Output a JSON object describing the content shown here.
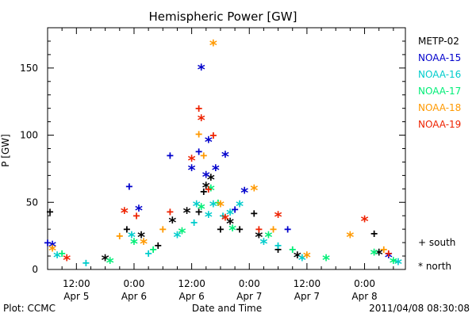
{
  "chart_data": {
    "type": "scatter",
    "title": "Hemispheric Power [GW]",
    "xlabel": "Date and Time",
    "ylabel": "P [GW]",
    "xlim": [
      "2011-04-05 06:00",
      "2011-04-08 08:30"
    ],
    "ylim": [
      0,
      180
    ],
    "yticks": [
      0,
      50,
      100,
      150
    ],
    "xticks": [
      {
        "at": "2011-04-05 12:00",
        "time": "12:00",
        "date": "Apr 5"
      },
      {
        "at": "2011-04-06 00:00",
        "time": "0:00",
        "date": "Apr 6"
      },
      {
        "at": "2011-04-06 12:00",
        "time": "12:00",
        "date": "Apr 6"
      },
      {
        "at": "2011-04-07 00:00",
        "time": "0:00",
        "date": "Apr 7"
      },
      {
        "at": "2011-04-07 12:00",
        "time": "12:00",
        "date": "Apr 7"
      },
      {
        "at": "2011-04-08 00:00",
        "time": "0:00",
        "date": "Apr 8"
      }
    ],
    "grid": false,
    "legend_position": "right",
    "symbols": [
      {
        "marker": "+",
        "label": "south"
      },
      {
        "marker": "*",
        "label": "north"
      }
    ],
    "series": [
      {
        "name": "METP-02",
        "color": "#000000",
        "points": [
          [
            "2011-04-05 06:30",
            43,
            "+"
          ],
          [
            "2011-04-05 18:00",
            8,
            "*"
          ],
          [
            "2011-04-05 22:30",
            30,
            "+"
          ],
          [
            "2011-04-06 01:30",
            25,
            "*"
          ],
          [
            "2011-04-06 05:00",
            18,
            "+"
          ],
          [
            "2011-04-06 08:00",
            36,
            "*"
          ],
          [
            "2011-04-06 11:00",
            43,
            "*"
          ],
          [
            "2011-04-06 13:30",
            43,
            "+"
          ],
          [
            "2011-04-06 14:30",
            58,
            "+"
          ],
          [
            "2011-04-06 15:00",
            62,
            "*"
          ],
          [
            "2011-04-06 16:00",
            68,
            "*"
          ],
          [
            "2011-04-06 18:00",
            30,
            "+"
          ],
          [
            "2011-04-06 20:00",
            35,
            "*"
          ],
          [
            "2011-04-06 22:00",
            30,
            "+"
          ],
          [
            "2011-04-07 01:00",
            42,
            "+"
          ],
          [
            "2011-04-07 02:00",
            25,
            "*"
          ],
          [
            "2011-04-07 06:00",
            15,
            "+"
          ],
          [
            "2011-04-07 10:00",
            10,
            "*"
          ],
          [
            "2011-04-08 02:00",
            27,
            "+"
          ],
          [
            "2011-04-08 03:00",
            12,
            "*"
          ]
        ]
      },
      {
        "name": "NOAA-15",
        "color": "#0000cc",
        "points": [
          [
            "2011-04-05 06:00",
            20,
            "+"
          ],
          [
            "2011-04-05 07:00",
            18,
            "*"
          ],
          [
            "2011-04-05 23:00",
            62,
            "+"
          ],
          [
            "2011-04-06 01:00",
            45,
            "*"
          ],
          [
            "2011-04-06 07:30",
            85,
            "+"
          ],
          [
            "2011-04-06 12:00",
            75,
            "*"
          ],
          [
            "2011-04-06 13:30",
            88,
            "+"
          ],
          [
            "2011-04-06 14:00",
            150,
            "*"
          ],
          [
            "2011-04-06 15:00",
            70,
            "*"
          ],
          [
            "2011-04-06 15:30",
            96,
            "*"
          ],
          [
            "2011-04-06 17:00",
            75,
            "*"
          ],
          [
            "2011-04-06 19:00",
            85,
            "*"
          ],
          [
            "2011-04-06 21:00",
            45,
            "+"
          ],
          [
            "2011-04-06 23:00",
            58,
            "*"
          ],
          [
            "2011-04-07 08:00",
            30,
            "+"
          ],
          [
            "2011-04-08 05:00",
            10,
            "*"
          ]
        ]
      },
      {
        "name": "NOAA-16",
        "color": "#00cccc",
        "points": [
          [
            "2011-04-05 08:00",
            10,
            "*"
          ],
          [
            "2011-04-05 14:00",
            5,
            "+"
          ],
          [
            "2011-04-05 23:30",
            25,
            "*"
          ],
          [
            "2011-04-06 03:00",
            12,
            "+"
          ],
          [
            "2011-04-06 09:00",
            25,
            "*"
          ],
          [
            "2011-04-06 12:30",
            35,
            "+"
          ],
          [
            "2011-04-06 13:00",
            48,
            "*"
          ],
          [
            "2011-04-06 15:30",
            40,
            "*"
          ],
          [
            "2011-04-06 16:30",
            48,
            "*"
          ],
          [
            "2011-04-06 18:30",
            40,
            "+"
          ],
          [
            "2011-04-06 20:00",
            42,
            "*"
          ],
          [
            "2011-04-06 22:00",
            48,
            "*"
          ],
          [
            "2011-04-07 03:00",
            20,
            "*"
          ],
          [
            "2011-04-07 06:00",
            18,
            "+"
          ],
          [
            "2011-04-07 11:00",
            8,
            "*"
          ],
          [
            "2011-04-08 07:00",
            5,
            "*"
          ]
        ]
      },
      {
        "name": "NOAA-17",
        "color": "#00ee77",
        "points": [
          [
            "2011-04-05 09:00",
            12,
            "+"
          ],
          [
            "2011-04-05 19:00",
            6,
            "*"
          ],
          [
            "2011-04-06 00:00",
            20,
            "*"
          ],
          [
            "2011-04-06 04:00",
            15,
            "+"
          ],
          [
            "2011-04-06 10:00",
            28,
            "*"
          ],
          [
            "2011-04-06 14:00",
            46,
            "*"
          ],
          [
            "2011-04-06 16:00",
            60,
            "*"
          ],
          [
            "2011-04-06 17:30",
            50,
            "+"
          ],
          [
            "2011-04-06 20:30",
            30,
            "*"
          ],
          [
            "2011-04-07 04:00",
            25,
            "*"
          ],
          [
            "2011-04-07 09:00",
            15,
            "+"
          ],
          [
            "2011-04-07 16:00",
            8,
            "*"
          ],
          [
            "2011-04-08 02:00",
            12,
            "*"
          ],
          [
            "2011-04-08 06:00",
            6,
            "*"
          ]
        ]
      },
      {
        "name": "NOAA-18",
        "color": "#ff9900",
        "points": [
          [
            "2011-04-05 07:00",
            15,
            "*"
          ],
          [
            "2011-04-05 21:00",
            25,
            "+"
          ],
          [
            "2011-04-06 02:00",
            20,
            "*"
          ],
          [
            "2011-04-06 06:00",
            30,
            "+"
          ],
          [
            "2011-04-06 13:30",
            101,
            "+"
          ],
          [
            "2011-04-06 14:30",
            85,
            "+"
          ],
          [
            "2011-04-06 16:30",
            168,
            "*"
          ],
          [
            "2011-04-06 18:00",
            48,
            "*"
          ],
          [
            "2011-04-07 01:00",
            60,
            "*"
          ],
          [
            "2011-04-07 05:00",
            30,
            "+"
          ],
          [
            "2011-04-07 12:00",
            10,
            "*"
          ],
          [
            "2011-04-07 21:00",
            25,
            "*"
          ],
          [
            "2011-04-08 04:00",
            15,
            "+"
          ]
        ]
      },
      {
        "name": "NOAA-19",
        "color": "#ee2200",
        "points": [
          [
            "2011-04-05 10:00",
            8,
            "*"
          ],
          [
            "2011-04-05 22:00",
            43,
            "*"
          ],
          [
            "2011-04-06 00:30",
            40,
            "+"
          ],
          [
            "2011-04-06 07:30",
            43,
            "+"
          ],
          [
            "2011-04-06 12:00",
            82,
            "*"
          ],
          [
            "2011-04-06 13:30",
            120,
            "+"
          ],
          [
            "2011-04-06 14:00",
            112,
            "*"
          ],
          [
            "2011-04-06 15:30",
            60,
            "+"
          ],
          [
            "2011-04-06 16:30",
            100,
            "+"
          ],
          [
            "2011-04-06 19:00",
            38,
            "*"
          ],
          [
            "2011-04-07 02:00",
            30,
            "+"
          ],
          [
            "2011-04-07 06:00",
            40,
            "*"
          ],
          [
            "2011-04-08 00:00",
            37,
            "*"
          ],
          [
            "2011-04-08 05:00",
            12,
            "+"
          ]
        ]
      }
    ]
  },
  "footer": {
    "left": "Plot: CCMC",
    "right": "2011/04/08 08:30:08"
  }
}
